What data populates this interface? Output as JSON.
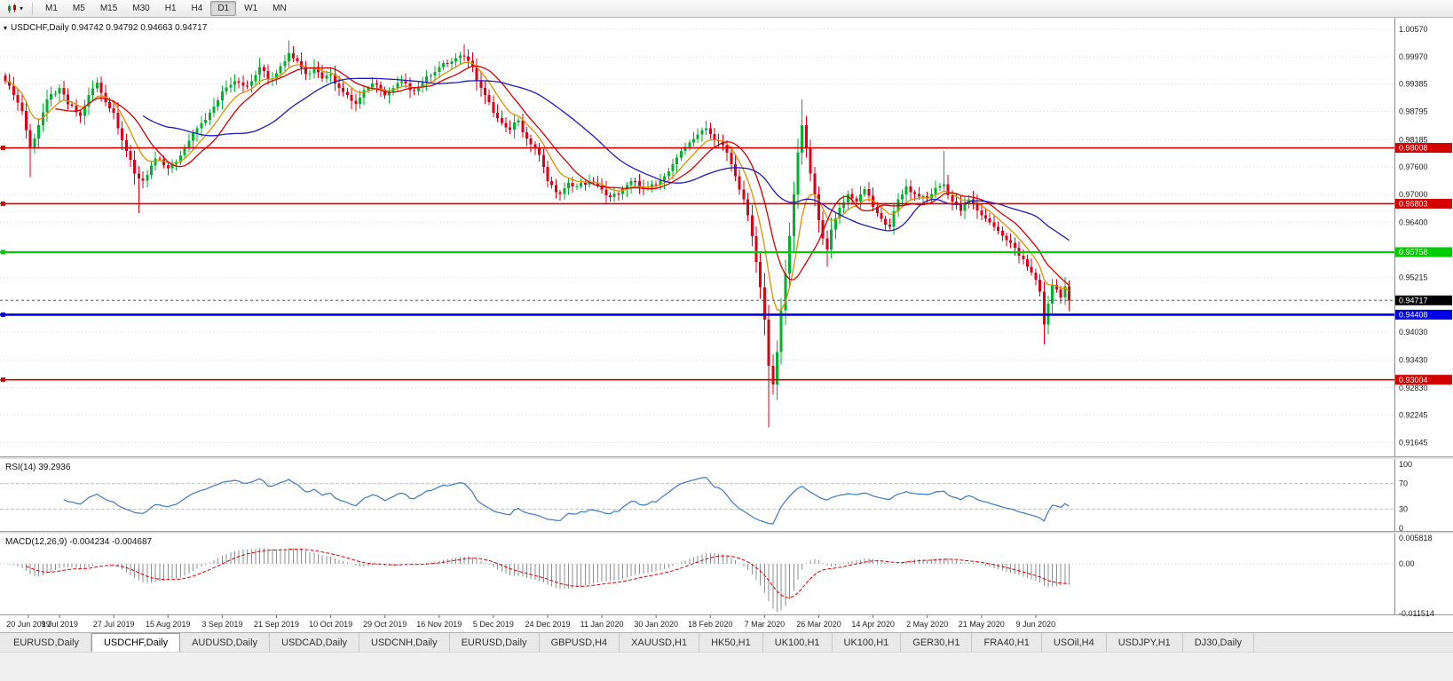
{
  "toolbar": {
    "caret": "▾",
    "timeframes": [
      "M1",
      "M5",
      "M15",
      "M30",
      "H1",
      "H4",
      "D1",
      "W1",
      "MN"
    ],
    "active_timeframe": "D1"
  },
  "chart": {
    "symbol": "USDCHF",
    "period": "Daily",
    "marker_glyph": "▾",
    "title_line": "USDCHF,Daily 0.94742 0.94792 0.94663 0.94717",
    "ohlc": {
      "open": "0.94742",
      "high": "0.94792",
      "low": "0.94663",
      "close": "0.94717"
    }
  },
  "chart_data": {
    "type": "candlestick",
    "symbol": "USDCHF",
    "timeframe": "Daily",
    "ylim": [
      0.9135,
      1.00816
    ],
    "y_ticks": [
      "1.00570",
      "0.99970",
      "0.99385",
      "0.98795",
      "0.98185",
      "0.97600",
      "0.97000",
      "0.96400",
      "0.95215",
      "0.94030",
      "0.93430",
      "0.92830",
      "0.92245",
      "0.91645"
    ],
    "x_labels": [
      "20 Jun 2019",
      "9 Jul 2019",
      "27 Jul 2019",
      "15 Aug 2019",
      "3 Sep 2019",
      "21 Sep 2019",
      "10 Oct 2019",
      "29 Oct 2019",
      "16 Nov 2019",
      "5 Dec 2019",
      "24 Dec 2019",
      "11 Jan 2020",
      "30 Jan 2020",
      "18 Feb 2020",
      "7 Mar 2020",
      "26 Mar 2020",
      "14 Apr 2020",
      "2 May 2020",
      "21 May 2020",
      "9 Jun 2020"
    ],
    "x_label_step": 13,
    "candle_count": 256,
    "noise_amp": 0.0012,
    "up_color": "#00B22D",
    "down_color": "#DF0017",
    "close_anchors": [
      [
        0,
        0.9945
      ],
      [
        2,
        0.9915
      ],
      [
        4,
        0.988
      ],
      [
        6,
        0.98
      ],
      [
        8,
        0.985
      ],
      [
        10,
        0.9905
      ],
      [
        13,
        0.993
      ],
      [
        15,
        0.9895
      ],
      [
        18,
        0.987
      ],
      [
        20,
        0.9915
      ],
      [
        22,
        0.9942
      ],
      [
        24,
        0.99
      ],
      [
        26,
        0.9877
      ],
      [
        29,
        0.9794
      ],
      [
        31,
        0.9745
      ],
      [
        33,
        0.973
      ],
      [
        36,
        0.9778
      ],
      [
        39,
        0.9757
      ],
      [
        41,
        0.977
      ],
      [
        43,
        0.98
      ],
      [
        46,
        0.9843
      ],
      [
        49,
        0.9877
      ],
      [
        52,
        0.9923
      ],
      [
        55,
        0.9945
      ],
      [
        58,
        0.9935
      ],
      [
        61,
        0.9975
      ],
      [
        63,
        0.995
      ],
      [
        65,
        0.9962
      ],
      [
        68,
        1.0005
      ],
      [
        70,
        0.9988
      ],
      [
        72,
        0.996
      ],
      [
        74,
        0.9975
      ],
      [
        76,
        0.995
      ],
      [
        78,
        0.996
      ],
      [
        80,
        0.993
      ],
      [
        82,
        0.9915
      ],
      [
        84,
        0.9896
      ],
      [
        86,
        0.9925
      ],
      [
        88,
        0.994
      ],
      [
        91,
        0.9914
      ],
      [
        93,
        0.993
      ],
      [
        95,
        0.9945
      ],
      [
        97,
        0.9925
      ],
      [
        99,
        0.9933
      ],
      [
        101,
        0.9955
      ],
      [
        104,
        0.9975
      ],
      [
        107,
        0.9988
      ],
      [
        110,
        0.9998
      ],
      [
        112,
        0.9975
      ],
      [
        114,
        0.993
      ],
      [
        116,
        0.99
      ],
      [
        117,
        0.9877
      ],
      [
        119,
        0.9855
      ],
      [
        121,
        0.984
      ],
      [
        123,
        0.986
      ],
      [
        125,
        0.9821
      ],
      [
        127,
        0.98
      ],
      [
        129,
        0.976
      ],
      [
        130,
        0.9729
      ],
      [
        132,
        0.9705
      ],
      [
        133,
        0.9701
      ],
      [
        135,
        0.9725
      ],
      [
        137,
        0.9718
      ],
      [
        140,
        0.9728
      ],
      [
        143,
        0.9711
      ],
      [
        145,
        0.9695
      ],
      [
        147,
        0.9701
      ],
      [
        149,
        0.972
      ],
      [
        151,
        0.9729
      ],
      [
        153,
        0.9712
      ],
      [
        156,
        0.972
      ],
      [
        158,
        0.974
      ],
      [
        160,
        0.9765
      ],
      [
        162,
        0.9794
      ],
      [
        164,
        0.9812
      ],
      [
        166,
        0.983
      ],
      [
        168,
        0.9843
      ],
      [
        169,
        0.9831
      ],
      [
        171,
        0.9815
      ],
      [
        173,
        0.979
      ],
      [
        175,
        0.974
      ],
      [
        177,
        0.969
      ],
      [
        179,
        0.961
      ],
      [
        180,
        0.9555
      ],
      [
        181,
        0.95
      ],
      [
        182,
        0.943
      ],
      [
        183,
        0.933
      ],
      [
        184,
        0.929
      ],
      [
        185,
        0.936
      ],
      [
        186,
        0.945
      ],
      [
        187,
        0.953
      ],
      [
        188,
        0.961
      ],
      [
        189,
        0.97
      ],
      [
        190,
        0.979
      ],
      [
        191,
        0.985
      ],
      [
        192,
        0.98
      ],
      [
        193,
        0.9745
      ],
      [
        194,
        0.97
      ],
      [
        195,
        0.9645
      ],
      [
        196,
        0.9605
      ],
      [
        197,
        0.9581
      ],
      [
        198,
        0.9625
      ],
      [
        200,
        0.9672
      ],
      [
        202,
        0.9701
      ],
      [
        204,
        0.9685
      ],
      [
        206,
        0.9712
      ],
      [
        208,
        0.9673
      ],
      [
        210,
        0.9648
      ],
      [
        212,
        0.963
      ],
      [
        214,
        0.969
      ],
      [
        216,
        0.9718
      ],
      [
        218,
        0.9701
      ],
      [
        221,
        0.9692
      ],
      [
        223,
        0.9715
      ],
      [
        225,
        0.9722
      ],
      [
        227,
        0.9685
      ],
      [
        229,
        0.9665
      ],
      [
        231,
        0.969
      ],
      [
        234,
        0.9655
      ],
      [
        236,
        0.964
      ],
      [
        238,
        0.9622
      ],
      [
        240,
        0.9602
      ],
      [
        242,
        0.9585
      ],
      [
        244,
        0.956
      ],
      [
        246,
        0.9532
      ],
      [
        248,
        0.949
      ],
      [
        249,
        0.942
      ],
      [
        250,
        0.9465
      ],
      [
        251,
        0.9505
      ],
      [
        252,
        0.9495
      ],
      [
        253,
        0.9478
      ],
      [
        254,
        0.9502
      ],
      [
        255,
        0.94717
      ]
    ],
    "wick_overrides": {
      "6": {
        "low": 0.9738
      },
      "32": {
        "low": 0.966
      },
      "68": {
        "high": 1.0033
      },
      "110": {
        "high": 1.0024
      },
      "168": {
        "high": 0.9859
      },
      "183": {
        "low": 0.9197
      },
      "191": {
        "high": 0.9905
      },
      "197": {
        "low": 0.9544
      },
      "225": {
        "high": 0.9794
      },
      "249": {
        "low": 0.9376
      }
    },
    "moving_averages": [
      {
        "period": 8,
        "method": "ema",
        "color": "#E09000"
      },
      {
        "period": 13,
        "method": "sma",
        "color": "#D40000"
      },
      {
        "period": 34,
        "method": "sma",
        "color": "#1A1AC0"
      }
    ],
    "hlines": [
      {
        "price": 0.98008,
        "label": "0.98008",
        "color": "#D40000",
        "width": 1.6
      },
      {
        "price": 0.96803,
        "label": "0.96803",
        "color": "#D40000",
        "width": 1.6
      },
      {
        "price": 0.95758,
        "label": "0.95758",
        "color": "#00CC00",
        "width": 2.2
      },
      {
        "price": 0.94408,
        "label": "0.94408",
        "color": "#0000E6",
        "width": 2.6
      },
      {
        "price": 0.93004,
        "label": "0.93004",
        "color": "#D40000",
        "width": 1.6
      }
    ],
    "current_price": {
      "value": 0.94717,
      "label": "0.94717",
      "box_color": "#000000",
      "line_color": "#555555"
    },
    "indicators": {
      "rsi": {
        "label": "RSI(14) 39.2936",
        "period": 14,
        "value": "39.2936",
        "color": "#3A78C3",
        "levels": [
          "100",
          "70",
          "30",
          "0"
        ],
        "level_lines": [
          70,
          30
        ],
        "range": [
          0,
          100
        ]
      },
      "macd": {
        "label": "MACD(12,26,9) -0.004234 -0.004687",
        "fast": 12,
        "slow": 26,
        "signal": 9,
        "values": [
          "-0.004234",
          "-0.004687"
        ],
        "hist_color": "#8E8E8E",
        "signal_color": "#E00000",
        "levels": [
          "0.005818",
          "0.00",
          "-0.011514"
        ],
        "ylim": [
          -0.011514,
          0.005818
        ]
      }
    }
  },
  "tabbar": {
    "tabs": [
      {
        "label": "EURUSD,Daily"
      },
      {
        "label": "USDCHF,Daily",
        "active": true
      },
      {
        "label": "AUDUSD,Daily"
      },
      {
        "label": "USDCAD,Daily"
      },
      {
        "label": "USDCNH,Daily"
      },
      {
        "label": "EURUSD,Daily"
      },
      {
        "label": "GBPUSD,H4"
      },
      {
        "label": "XAUUSD,H1"
      },
      {
        "label": "HK50,H1"
      },
      {
        "label": "UK100,H1"
      },
      {
        "label": "UK100,H1"
      },
      {
        "label": "GER30,H1"
      },
      {
        "label": "FRA40,H1"
      },
      {
        "label": "USOil,H4"
      },
      {
        "label": "USDJPY,H1"
      },
      {
        "label": "DJ30,Daily"
      }
    ]
  }
}
